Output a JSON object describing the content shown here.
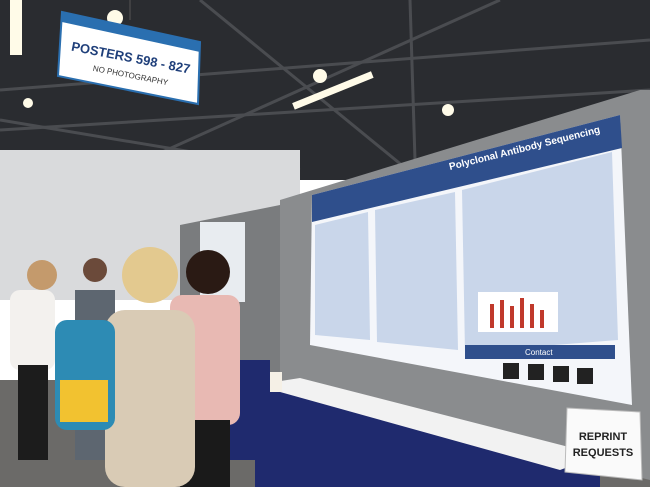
{
  "hanging_sign": {
    "title": "POSTERS 598 - 827",
    "subtitle": "NO PHOTOGRAPHY"
  },
  "poster": {
    "title": "Polyclonal Antibody Sequencing",
    "contact": "Contact"
  },
  "reprint_sign": {
    "lines": [
      "REPRINT",
      "REQUESTS"
    ]
  }
}
